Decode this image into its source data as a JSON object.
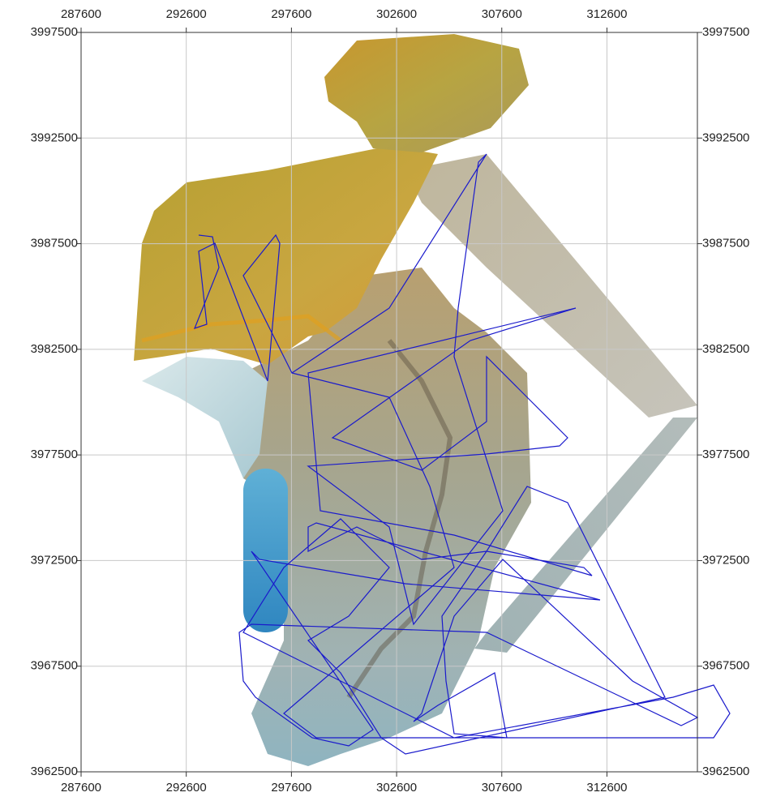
{
  "chart_data": {
    "type": "map",
    "xlim": [
      287600,
      316900
    ],
    "ylim": [
      3962500,
      3997500
    ],
    "xticks": [
      287600,
      292600,
      297600,
      302600,
      307600,
      312600
    ],
    "yticks": [
      3962500,
      3967500,
      3972500,
      3977500,
      3982500,
      3987500,
      3992500,
      3997500
    ],
    "grid": true
  }
}
